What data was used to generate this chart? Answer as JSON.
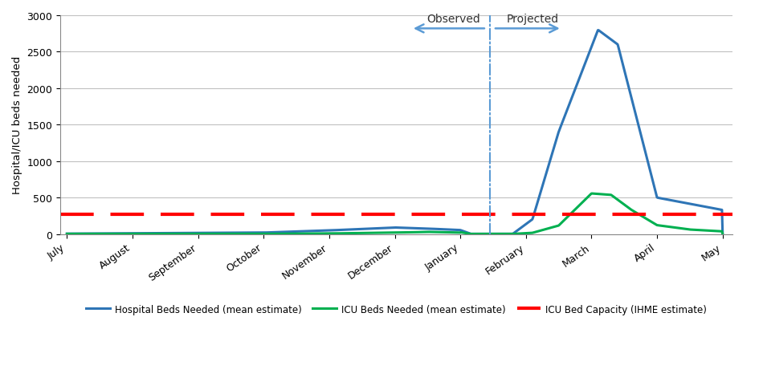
{
  "title": "",
  "ylabel": "Hospital/ICU beds needed",
  "ylim": [
    0,
    3000
  ],
  "yticks": [
    0,
    500,
    1000,
    1500,
    2000,
    2500,
    3000
  ],
  "months": [
    "July",
    "August",
    "September",
    "October",
    "November",
    "December",
    "January",
    "February",
    "March",
    "April",
    "May"
  ],
  "icu_capacity": 270,
  "hospital_color": "#2E75B6",
  "icu_color": "#00B050",
  "capacity_color": "#FF0000",
  "divider_color": "#5B9BD5",
  "observed_label": "Observed",
  "projected_label": "Projected",
  "legend_hospital": "Hospital Beds Needed (mean estimate)",
  "legend_icu": "ICU Beds Needed (mean estimate)",
  "legend_capacity": "ICU Bed Capacity (IHME estimate)"
}
